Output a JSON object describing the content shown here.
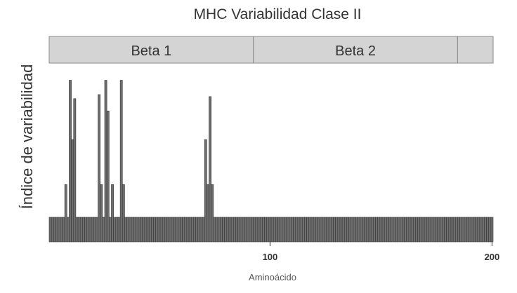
{
  "chart_data": {
    "type": "bar",
    "title": "MHC Variabilidad Clase II",
    "xlabel": "Aminoácido",
    "ylabel": "Índice de variabilidad",
    "xlim": [
      1,
      200
    ],
    "ylim": [
      0,
      85
    ],
    "x_ticks": [
      {
        "value": 100,
        "label": "100"
      },
      {
        "value": 200,
        "label": "200"
      }
    ],
    "regions": [
      {
        "label": "Beta 1",
        "start": 1,
        "end": 92
      },
      {
        "label": "Beta 2",
        "start": 93,
        "end": 184
      },
      {
        "label": "",
        "start": 185,
        "end": 200
      }
    ],
    "x": [
      1,
      2,
      3,
      4,
      5,
      6,
      7,
      8,
      9,
      10,
      11,
      12,
      13,
      14,
      15,
      16,
      17,
      18,
      19,
      20,
      21,
      22,
      23,
      24,
      25,
      26,
      27,
      28,
      29,
      30,
      31,
      32,
      33,
      34,
      35,
      36,
      37,
      38,
      39,
      40,
      41,
      42,
      43,
      44,
      45,
      46,
      47,
      48,
      49,
      50,
      51,
      52,
      53,
      54,
      55,
      56,
      57,
      58,
      59,
      60,
      61,
      62,
      63,
      64,
      65,
      66,
      67,
      68,
      69,
      70,
      71,
      72,
      73,
      74,
      75,
      76,
      77,
      78,
      79,
      80,
      81,
      82,
      83,
      84,
      85,
      86,
      87,
      88,
      89,
      90,
      91,
      92,
      93,
      94,
      95,
      96,
      97,
      98,
      99,
      100,
      101,
      102,
      103,
      104,
      105,
      106,
      107,
      108,
      109,
      110,
      111,
      112,
      113,
      114,
      115,
      116,
      117,
      118,
      119,
      120,
      121,
      122,
      123,
      124,
      125,
      126,
      127,
      128,
      129,
      130,
      131,
      132,
      133,
      134,
      135,
      136,
      137,
      138,
      139,
      140,
      141,
      142,
      143,
      144,
      145,
      146,
      147,
      148,
      149,
      150,
      151,
      152,
      153,
      154,
      155,
      156,
      157,
      158,
      159,
      160,
      161,
      162,
      163,
      164,
      165,
      166,
      167,
      168,
      169,
      170,
      171,
      172,
      173,
      174,
      175,
      176,
      177,
      178,
      179,
      180,
      181,
      182,
      183,
      184,
      185,
      186,
      187,
      188,
      189,
      190,
      191,
      192,
      193,
      194,
      195,
      196,
      197,
      198,
      199,
      200
    ],
    "series": [
      {
        "values": [
          12,
          12,
          12,
          12,
          12,
          12,
          12,
          28,
          12,
          79,
          50,
          70,
          12,
          12,
          12,
          12,
          12,
          12,
          12,
          12,
          12,
          12,
          72,
          28,
          12,
          79,
          64,
          12,
          28,
          12,
          12,
          12,
          79,
          28,
          12,
          12,
          12,
          12,
          12,
          12,
          12,
          12,
          12,
          12,
          12,
          12,
          12,
          12,
          12,
          12,
          12,
          12,
          12,
          12,
          12,
          12,
          12,
          12,
          12,
          12,
          12,
          12,
          12,
          12,
          12,
          12,
          12,
          12,
          12,
          12,
          50,
          28,
          71,
          28,
          12,
          12,
          12,
          12,
          12,
          12,
          12,
          12,
          12,
          12,
          12,
          12,
          12,
          12,
          12,
          12,
          12,
          12,
          12,
          12,
          12,
          12,
          12,
          12,
          12,
          12,
          12,
          12,
          12,
          12,
          12,
          12,
          12,
          12,
          12,
          12,
          12,
          12,
          12,
          12,
          12,
          12,
          12,
          12,
          12,
          12,
          12,
          12,
          12,
          12,
          12,
          12,
          12,
          12,
          12,
          12,
          12,
          12,
          12,
          12,
          12,
          12,
          12,
          12,
          12,
          12,
          12,
          12,
          12,
          12,
          12,
          12,
          12,
          12,
          12,
          12,
          12,
          12,
          12,
          12,
          12,
          12,
          12,
          12,
          12,
          12,
          12,
          12,
          12,
          12,
          12,
          12,
          12,
          12,
          12,
          12,
          12,
          12,
          12,
          12,
          12,
          12,
          12,
          12,
          12,
          12,
          12,
          12,
          12,
          12,
          12,
          12,
          12,
          12,
          12,
          12,
          12,
          12,
          12,
          12,
          12,
          12,
          12,
          12,
          12,
          12
        ]
      }
    ],
    "bar_color": "#6f6f6f",
    "bar_edge_color": "#333333",
    "region_color": "#d4d4d4",
    "grid": false,
    "legend": "none"
  }
}
